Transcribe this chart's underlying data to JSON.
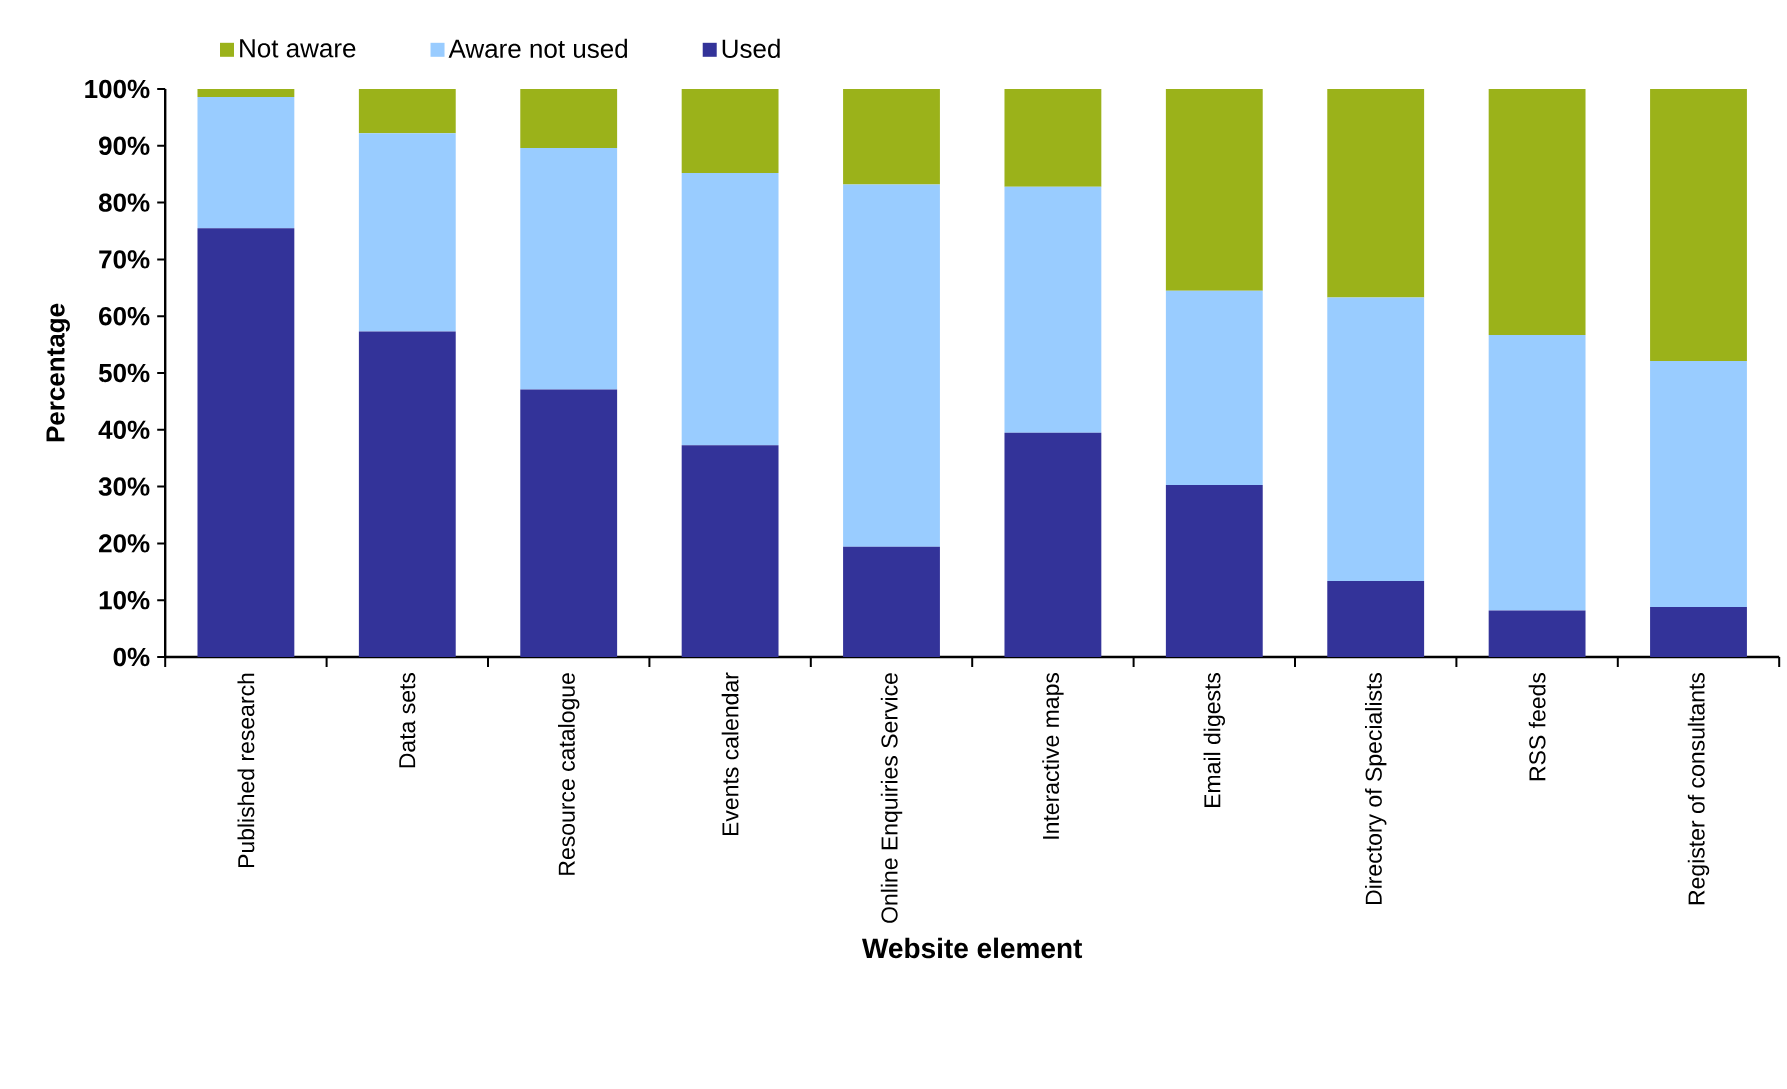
{
  "chart_data": {
    "type": "bar",
    "stacked": true,
    "xlabel": "Website element",
    "ylabel": "Percentage",
    "categories": [
      "Published research",
      "Data sets",
      "Resource catalogue",
      "Events calendar",
      "Online Enquiries Service",
      "Interactive maps",
      "Email digests",
      "Directory of  Specialists",
      "RSS feeds",
      "Register of consultants"
    ],
    "series": [
      {
        "name": "Used",
        "color": "#333399",
        "values": [
          75.5,
          57.3,
          47.1,
          37.3,
          19.4,
          39.5,
          30.3,
          13.4,
          8.2,
          8.8
        ]
      },
      {
        "name": "Aware not used",
        "color": "#99ccff",
        "values": [
          23.1,
          34.9,
          42.5,
          47.9,
          63.8,
          43.3,
          34.2,
          49.9,
          48.5,
          43.3
        ]
      },
      {
        "name": "Not aware",
        "color": "#9bb21a",
        "values": [
          1.4,
          7.8,
          10.4,
          14.8,
          16.8,
          17.2,
          35.5,
          36.7,
          43.3,
          47.9
        ]
      }
    ],
    "ylim": [
      0,
      100
    ],
    "yticks": [
      {
        "value": 0,
        "label": "0%"
      },
      {
        "value": 10,
        "label": "10%"
      },
      {
        "value": 20,
        "label": "20%"
      },
      {
        "value": 30,
        "label": "30%"
      },
      {
        "value": 40,
        "label": "40%"
      },
      {
        "value": 50,
        "label": "50%"
      },
      {
        "value": 60,
        "label": "60%"
      },
      {
        "value": 70,
        "label": "70%"
      },
      {
        "value": 80,
        "label": "80%"
      },
      {
        "value": 90,
        "label": "90%"
      },
      {
        "value": 100,
        "label": "100%"
      }
    ],
    "grid": false,
    "legend": "top"
  }
}
